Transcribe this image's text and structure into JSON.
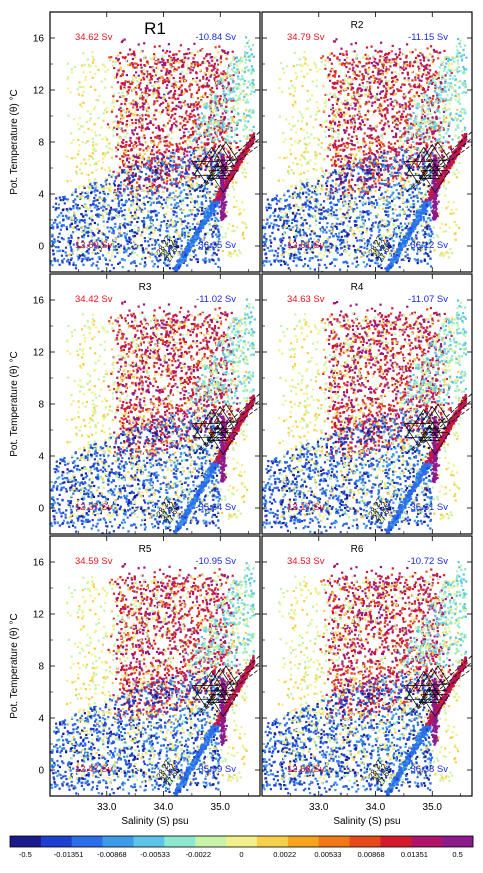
{
  "chart_data": {
    "type": "scatter",
    "description_axes": {
      "xlabel": "Salinity (S) psu",
      "ylabel": "Pot. Temperature (θ) °C",
      "xlim": [
        32.0,
        35.7
      ],
      "ylim": [
        -2.0,
        18.0
      ],
      "xticks": [
        "33.0",
        "34.0",
        "35.0"
      ],
      "yticks": [
        "0",
        "4",
        "8",
        "12",
        "16"
      ]
    },
    "panels": [
      {
        "name": "R1",
        "transport_pos": "34.62 Sv",
        "transport_neg": "-10.84 Sv",
        "transport_cold_pos": "12.69 Sv",
        "transport_cold_neg": "-36.35 Sv"
      },
      {
        "name": "R2",
        "transport_pos": "34.79 Sv",
        "transport_neg": "-11.15 Sv",
        "transport_cold_pos": "12.61 Sv",
        "transport_cold_neg": "-36.12 Sv"
      },
      {
        "name": "R3",
        "transport_pos": "34.42 Sv",
        "transport_neg": "-11.02 Sv",
        "transport_cold_pos": "12.37 Sv",
        "transport_cold_neg": "-35.64 Sv"
      },
      {
        "name": "R4",
        "transport_pos": "34.63 Sv",
        "transport_neg": "-11.07 Sv",
        "transport_cold_pos": "12.17 Sv",
        "transport_cold_neg": "-35.61 Sv"
      },
      {
        "name": "R5",
        "transport_pos": "34.59 Sv",
        "transport_neg": "-10.95 Sv",
        "transport_cold_pos": "12.47 Sv",
        "transport_cold_neg": "-35.99 Sv"
      },
      {
        "name": "R6",
        "transport_pos": "34.53 Sv",
        "transport_neg": "-10.72 Sv",
        "transport_cold_pos": "12.68 Sv",
        "transport_cold_neg": "-36.38 Sv"
      }
    ],
    "isopycnals": [
      {
        "label": "28.27"
      },
      {
        "label": "27.52"
      },
      {
        "label": "27.68"
      }
    ],
    "colorbar": {
      "labels": [
        "-0.5",
        "-0.01351",
        "-0.00868",
        "-0.00533",
        "-0.0022",
        "0",
        "0.0022",
        "0.00533",
        "0.00868",
        "0.01351",
        "0.5"
      ],
      "colors": [
        "#1a1a8c",
        "#1f3fcf",
        "#2a6ee8",
        "#3d9be8",
        "#5cc4e8",
        "#8de8d0",
        "#c6f3a8",
        "#f2f08a",
        "#f7d04a",
        "#f6a31d",
        "#f07818",
        "#e64a1a",
        "#d41a2a",
        "#b0146a",
        "#8c1a8c"
      ]
    },
    "colors": {
      "positive_text": "#e8141e",
      "negative_text": "#1a2ad4"
    }
  }
}
